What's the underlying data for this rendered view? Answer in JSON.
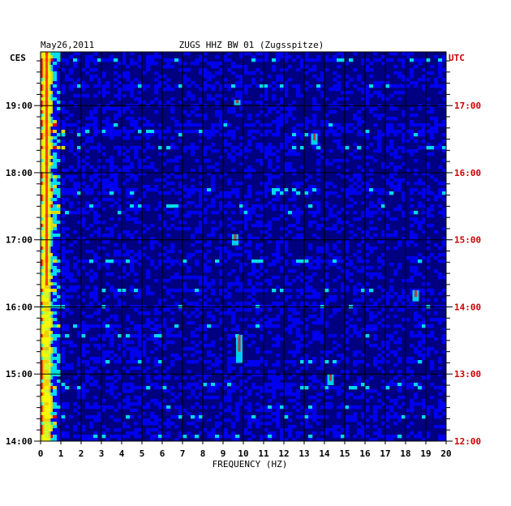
{
  "chart_data": {
    "type": "heatmap",
    "date": "May26,2011",
    "title": "ZUGS HHZ BW 01 (Zugsspitze)",
    "xlabel": "FREQUENCY (HZ)",
    "xlim": [
      0,
      20
    ],
    "x_ticks": [
      "0",
      "1",
      "2",
      "3",
      "4",
      "5",
      "6",
      "7",
      "8",
      "9",
      "10",
      "11",
      "12",
      "13",
      "14",
      "15",
      "16",
      "17",
      "18",
      "19",
      "20"
    ],
    "left_axis": {
      "label": "CES",
      "ticks": [
        "19:00",
        "18:00",
        "17:00",
        "16:00",
        "15:00",
        "14:00"
      ],
      "range": [
        "14:00",
        "19:48"
      ]
    },
    "right_axis": {
      "label": "UTC",
      "ticks": [
        "17:00",
        "16:00",
        "15:00",
        "14:00",
        "13:00",
        "12:00"
      ],
      "color": "#cc0000"
    },
    "colormap": [
      "#000080",
      "#0000ff",
      "#00ffff",
      "#ffff00",
      "#ff0000"
    ],
    "features": [
      {
        "freq": 0.3,
        "start": "14:00",
        "end": "19:48",
        "level": "high"
      },
      {
        "freq": 9.8,
        "start": "15:10",
        "end": "15:35",
        "level": "medium"
      },
      {
        "freq": 9.6,
        "start": "16:55",
        "end": "17:05",
        "level": "medium"
      },
      {
        "freq": 9.7,
        "start": "19:00",
        "end": "19:05",
        "level": "medium"
      },
      {
        "freq": 13.5,
        "start": "18:25",
        "end": "18:35",
        "level": "medium"
      },
      {
        "freq": 14.3,
        "start": "14:50",
        "end": "15:00",
        "level": "medium"
      },
      {
        "freq": 18.5,
        "start": "16:05",
        "end": "16:15",
        "level": "medium"
      }
    ]
  }
}
